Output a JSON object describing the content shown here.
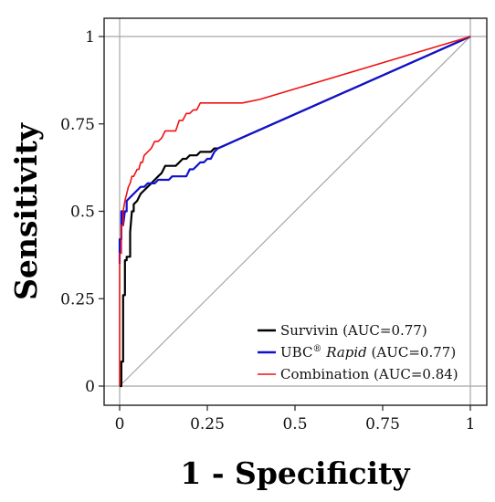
{
  "chart_data": {
    "type": "line",
    "xlabel": "1 - Specificity",
    "ylabel": "Sensitivity",
    "xlim": [
      0,
      1
    ],
    "ylim": [
      0,
      1
    ],
    "x_ticks": [
      {
        "value": 0,
        "label": "0"
      },
      {
        "value": 0.25,
        "label": "0.25"
      },
      {
        "value": 0.5,
        "label": "0.5"
      },
      {
        "value": 0.75,
        "label": "0.75"
      },
      {
        "value": 1,
        "label": "1"
      }
    ],
    "y_ticks": [
      {
        "value": 0,
        "label": "0"
      },
      {
        "value": 0.25,
        "label": "0.25"
      },
      {
        "value": 0.5,
        "label": "0.5"
      },
      {
        "value": 0.75,
        "label": "0.75"
      },
      {
        "value": 1,
        "label": "1"
      }
    ],
    "gridlines": [
      0,
      1
    ],
    "diagonal_reference": true,
    "legend_position": "bottom-right",
    "series": [
      {
        "color": "#000000",
        "legend": {
          "main": "Survivin",
          "suffix": " (AUC=0.77)"
        },
        "x": [
          0,
          0.005,
          0.005,
          0.01,
          0.01,
          0.015,
          0.015,
          0.02,
          0.02,
          0.025,
          0.03,
          0.03,
          0.035,
          0.04,
          0.04,
          0.05,
          0.06,
          0.07,
          0.08,
          0.09,
          0.1,
          0.11,
          0.12,
          0.13,
          0.14,
          0.15,
          0.16,
          0.17,
          0.18,
          0.19,
          0.2,
          0.21,
          0.22,
          0.23,
          0.24,
          0.25,
          0.26,
          0.27,
          0.28,
          1
        ],
        "y": [
          0,
          0,
          0.07,
          0.07,
          0.26,
          0.26,
          0.36,
          0.36,
          0.37,
          0.37,
          0.37,
          0.44,
          0.5,
          0.5,
          0.52,
          0.53,
          0.55,
          0.56,
          0.57,
          0.58,
          0.59,
          0.6,
          0.61,
          0.63,
          0.63,
          0.63,
          0.63,
          0.64,
          0.65,
          0.65,
          0.66,
          0.66,
          0.66,
          0.67,
          0.67,
          0.67,
          0.67,
          0.68,
          0.68,
          1
        ]
      },
      {
        "color": "#1010d0",
        "legend": {
          "main": "UBC",
          "sup": "®",
          "italic": " Rapid",
          "suffix": " (AUC=0.77)"
        },
        "x": [
          0,
          0,
          0.005,
          0.005,
          0.01,
          0.01,
          0.015,
          0.02,
          0.02,
          0.03,
          0.04,
          0.05,
          0.06,
          0.07,
          0.08,
          0.09,
          0.1,
          0.11,
          0.12,
          0.13,
          0.14,
          0.15,
          0.16,
          0.17,
          0.18,
          0.19,
          0.2,
          0.21,
          0.22,
          0.23,
          0.24,
          0.25,
          0.26,
          0.27,
          0.28,
          1
        ],
        "y": [
          0.35,
          0.42,
          0.42,
          0.5,
          0.5,
          0.46,
          0.5,
          0.5,
          0.53,
          0.54,
          0.55,
          0.56,
          0.57,
          0.57,
          0.58,
          0.58,
          0.58,
          0.59,
          0.59,
          0.59,
          0.59,
          0.6,
          0.6,
          0.6,
          0.6,
          0.6,
          0.62,
          0.62,
          0.63,
          0.64,
          0.64,
          0.65,
          0.65,
          0.67,
          0.68,
          1
        ]
      },
      {
        "color": "#ee1111",
        "legend": {
          "main": "Combination",
          "suffix": " (AUC=0.84)"
        },
        "x": [
          0,
          0,
          0.005,
          0.005,
          0.01,
          0.01,
          0.015,
          0.02,
          0.025,
          0.03,
          0.035,
          0.04,
          0.05,
          0.055,
          0.06,
          0.065,
          0.07,
          0.08,
          0.09,
          0.1,
          0.11,
          0.12,
          0.13,
          0.14,
          0.15,
          0.16,
          0.17,
          0.18,
          0.19,
          0.2,
          0.21,
          0.22,
          0.23,
          0.25,
          0.3,
          0.35,
          0.4,
          0.5,
          0.6,
          0.7,
          0.8,
          0.9,
          1
        ],
        "y": [
          0,
          0.38,
          0.38,
          0.46,
          0.46,
          0.5,
          0.53,
          0.55,
          0.57,
          0.58,
          0.6,
          0.6,
          0.62,
          0.62,
          0.64,
          0.64,
          0.66,
          0.67,
          0.68,
          0.7,
          0.7,
          0.71,
          0.73,
          0.73,
          0.73,
          0.73,
          0.76,
          0.76,
          0.78,
          0.78,
          0.79,
          0.79,
          0.81,
          0.81,
          0.81,
          0.81,
          0.82,
          0.85,
          0.88,
          0.91,
          0.94,
          0.97,
          1
        ]
      }
    ]
  }
}
